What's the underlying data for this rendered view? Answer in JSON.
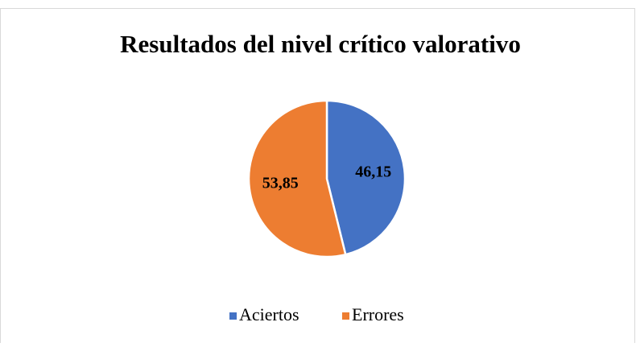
{
  "chart_data": {
    "type": "pie",
    "title": "Resultados del nivel crítico valorativo",
    "categories": [
      "Aciertos",
      "Errores"
    ],
    "values": [
      46.15,
      53.85
    ],
    "value_labels": [
      "46,15",
      "53,85"
    ],
    "colors": [
      "#4472c4",
      "#ed7d31"
    ],
    "legend": "bottom"
  }
}
